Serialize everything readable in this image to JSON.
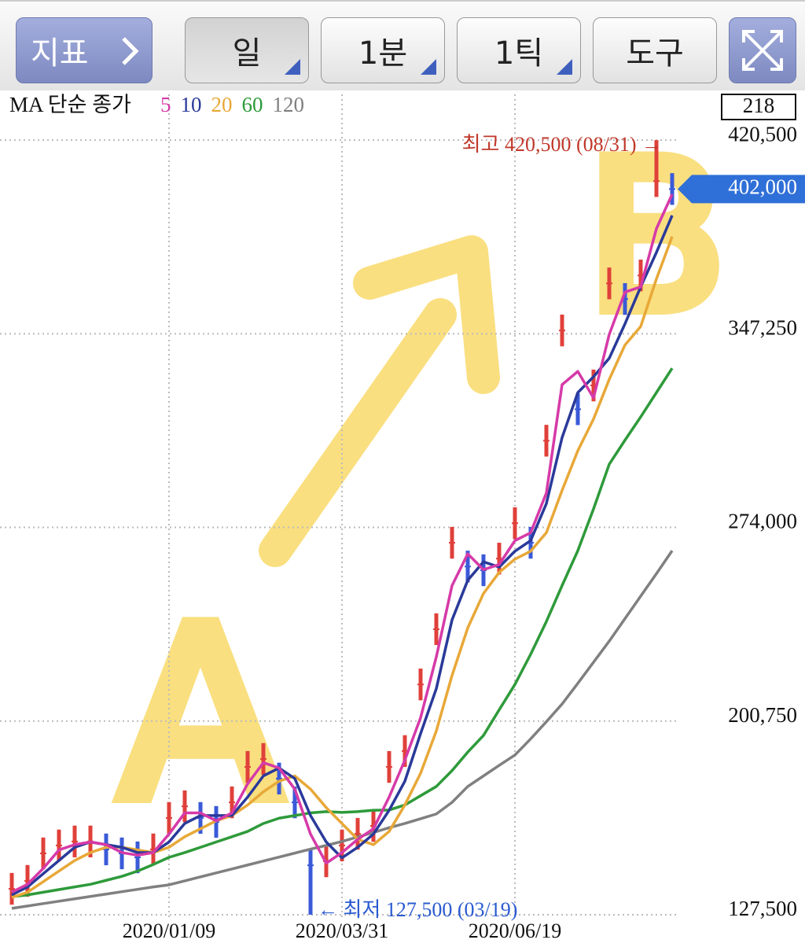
{
  "toolbar": {
    "buttons": [
      "지표",
      "일",
      "1분",
      "1틱",
      "도구"
    ]
  },
  "chart_data": {
    "type": "candlestick",
    "legend_title": "MA 단순 종가",
    "count_box": "218",
    "categories": [
      null,
      null,
      null,
      null,
      null,
      null,
      null,
      null,
      null,
      null,
      "2020/01/09",
      null,
      null,
      null,
      null,
      null,
      null,
      null,
      null,
      null,
      null,
      "2020/03/31",
      null,
      null,
      null,
      null,
      null,
      null,
      null,
      null,
      null,
      null,
      "2020/06/19",
      null,
      null,
      null,
      null,
      null,
      null,
      null,
      null,
      null,
      null
    ],
    "candles": {
      "up_color": "#e0403a",
      "down_color": "#3a5ad8",
      "close": [
        137300,
        140300,
        150700,
        153700,
        155200,
        155200,
        152200,
        150700,
        149200,
        152200,
        164100,
        168500,
        164100,
        162600,
        170000,
        183400,
        186400,
        179000,
        170000,
        146200,
        147700,
        153700,
        158100,
        161100,
        183400,
        189400,
        214600,
        235500,
        268200,
        259200,
        257800,
        262200,
        275600,
        268200,
        306800,
        348500,
        318700,
        327700,
        366300,
        360400,
        369300,
        405000,
        402000
      ],
      "high": [
        143300,
        146300,
        156700,
        159700,
        161200,
        161200,
        158200,
        156700,
        155200,
        158200,
        170100,
        174500,
        170100,
        168600,
        176000,
        189400,
        192400,
        185000,
        176000,
        152200,
        153700,
        159700,
        164100,
        167100,
        189400,
        195400,
        220600,
        241500,
        274200,
        265200,
        263800,
        268200,
        281600,
        274200,
        312800,
        354500,
        324700,
        333700,
        372300,
        366400,
        375300,
        420500,
        408000
      ],
      "low": [
        131300,
        134300,
        144700,
        147700,
        149200,
        149200,
        146200,
        144700,
        143200,
        146200,
        158100,
        162500,
        158100,
        156600,
        164000,
        177400,
        180400,
        173000,
        164000,
        127500,
        141700,
        147700,
        152100,
        155100,
        177400,
        183400,
        208600,
        229500,
        262200,
        253200,
        251800,
        256200,
        269600,
        262200,
        300800,
        342500,
        312700,
        321700,
        360300,
        354400,
        363300,
        399000,
        396000
      ]
    },
    "series": [
      {
        "name": "5",
        "color": "#d63aa8",
        "values": [
          136000,
          139000,
          145000,
          152000,
          154000,
          155000,
          154000,
          151000,
          150000,
          151000,
          158000,
          166000,
          166000,
          163000,
          166000,
          177000,
          185000,
          183000,
          175000,
          158000,
          147000,
          151000,
          156000,
          160000,
          172000,
          186000,
          202000,
          225000,
          252000,
          264000,
          258000,
          260000,
          269000,
          272000,
          287000,
          328000,
          333000,
          323000,
          347000,
          363000,
          365000,
          387000,
          400000
        ]
      },
      {
        "name": "10",
        "color": "#2a3a9a",
        "values": [
          135000,
          138000,
          143000,
          148000,
          153000,
          155000,
          154000,
          153000,
          151000,
          151000,
          155000,
          162000,
          165000,
          165000,
          165000,
          172000,
          180000,
          183000,
          179000,
          165000,
          155000,
          149000,
          153000,
          158000,
          167000,
          178000,
          196000,
          213000,
          239000,
          254000,
          261000,
          259000,
          265000,
          269000,
          283000,
          308000,
          325000,
          331000,
          338000,
          351000,
          365000,
          378000,
          392000
        ]
      },
      {
        "name": "20",
        "color": "#e8a838",
        "values": [
          134000,
          136000,
          140000,
          144000,
          148000,
          151000,
          153000,
          153000,
          152000,
          151000,
          153000,
          157000,
          160000,
          163000,
          165000,
          169000,
          174000,
          178000,
          180000,
          175000,
          168000,
          162000,
          156000,
          154000,
          159000,
          169000,
          181000,
          197000,
          218000,
          236000,
          249000,
          257000,
          262000,
          265000,
          272000,
          288000,
          303000,
          315000,
          330000,
          343000,
          350000,
          368000,
          384000
        ]
      },
      {
        "name": "60",
        "color": "#2e9a3a",
        "values": [
          134300,
          135000,
          136000,
          137000,
          138000,
          139000,
          140500,
          142000,
          144000,
          146500,
          149200,
          151000,
          153000,
          155000,
          157000,
          159000,
          162000,
          164000,
          165000,
          166000,
          166500,
          166200,
          166500,
          167000,
          167100,
          169000,
          172500,
          176000,
          182000,
          189000,
          195300,
          205000,
          214600,
          226000,
          238400,
          252000,
          265200,
          281000,
          297900,
          307000,
          315800,
          325000,
          334200
        ]
      },
      {
        "name": "120",
        "color": "#808080",
        "values": [
          129900,
          130800,
          131700,
          132600,
          133500,
          134400,
          135300,
          136200,
          137100,
          138000,
          138800,
          140300,
          141800,
          143300,
          144800,
          146300,
          147800,
          149300,
          150800,
          152300,
          153700,
          155200,
          156900,
          158600,
          160400,
          162000,
          163800,
          165600,
          170000,
          176000,
          180000,
          184000,
          187900,
          194000,
          200500,
          207200,
          215000,
          223000,
          231000,
          239500,
          248000,
          256500,
          265200
        ]
      }
    ],
    "ylim": [
      125400,
      437800
    ],
    "yticks": [
      {
        "value": 127500,
        "label": "127,500"
      },
      {
        "value": 200750,
        "label": "200,750"
      },
      {
        "value": 274000,
        "label": "274,000"
      },
      {
        "value": 347250,
        "label": "347,250"
      },
      {
        "value": 420500,
        "label": "420,500"
      }
    ],
    "grid": true,
    "last_price": {
      "value": 402000,
      "label": "402,000"
    },
    "annotations": {
      "high": "최고 420,500 (08/31) →",
      "low": "← 최저 127,500 (03/19)"
    },
    "handwriting": [
      "A",
      "B"
    ]
  }
}
